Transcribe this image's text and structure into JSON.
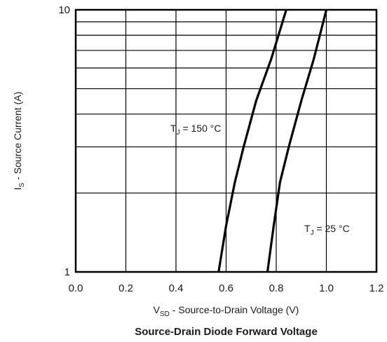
{
  "chart_data": {
    "type": "line",
    "title": "Source-Drain Diode Forward Voltage",
    "xlabel": {
      "main": "V",
      "sub": "SD",
      "rest": " - Source-to-Drain Voltage (V)"
    },
    "ylabel": {
      "main": "I",
      "sub": "S",
      "rest": " - Source Current (A)"
    },
    "xlim": [
      0.0,
      1.2
    ],
    "ylim": [
      1,
      10
    ],
    "yscale": "log",
    "grid": true,
    "x_ticks": [
      "0.0",
      "0.2",
      "0.4",
      "0.6",
      "0.8",
      "1.0",
      "1.2"
    ],
    "y_ticks": [
      "1",
      "10"
    ],
    "series": [
      {
        "name": {
          "main": "T",
          "sub": "J",
          "rest": " = 150 °C"
        },
        "x": [
          0.57,
          0.6,
          0.635,
          0.67,
          0.72,
          0.78,
          0.84
        ],
        "y": [
          1.0,
          1.5,
          2.2,
          3.0,
          4.5,
          6.5,
          10.0
        ],
        "color": "#000000"
      },
      {
        "name": {
          "main": "T",
          "sub": "J",
          "rest": " = 25 °C"
        },
        "x": [
          0.765,
          0.79,
          0.815,
          0.85,
          0.9,
          0.95,
          1.0
        ],
        "y": [
          1.0,
          1.5,
          2.2,
          3.0,
          4.5,
          6.5,
          10.0
        ],
        "color": "#000000"
      }
    ]
  }
}
